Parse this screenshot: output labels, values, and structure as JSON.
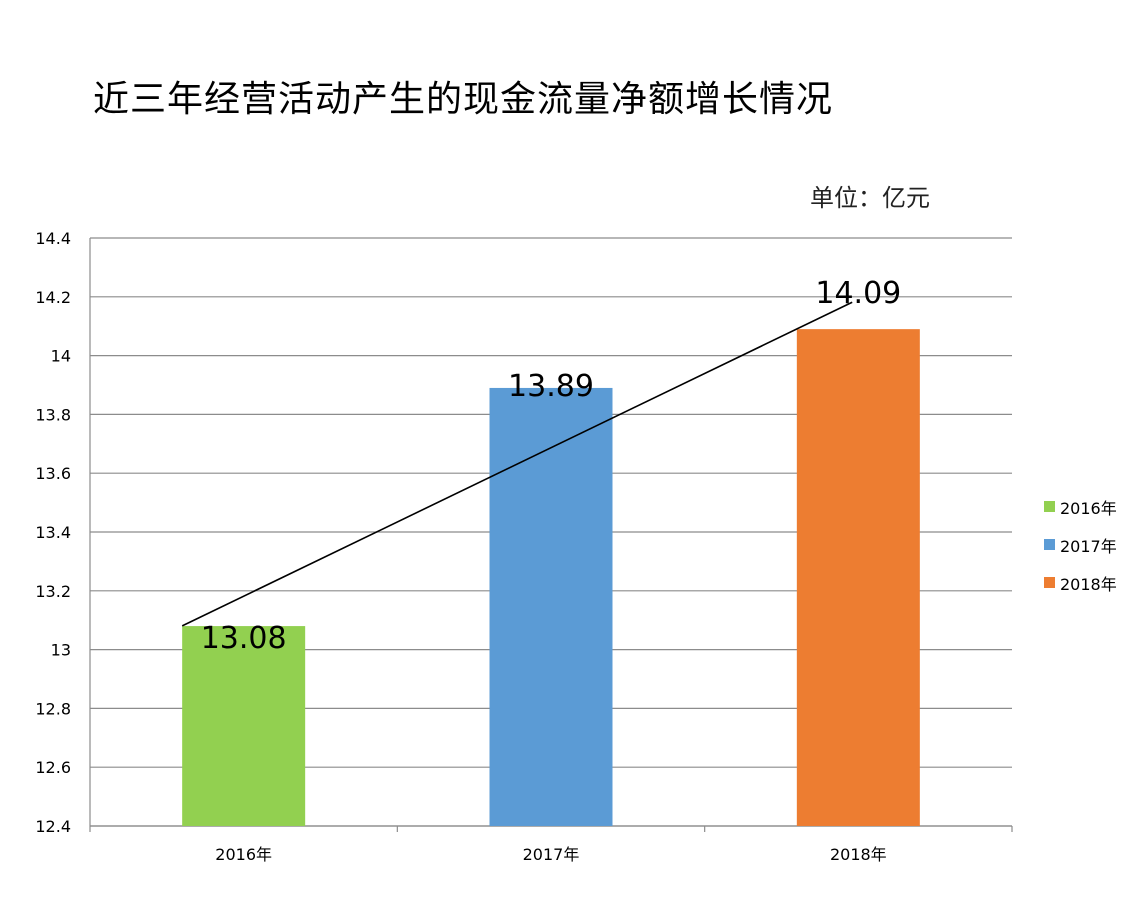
{
  "title": "近三年经营活动产生的现金流量净额增长情况",
  "unit_label": "单位：亿元",
  "chart_data": {
    "type": "bar",
    "title": "近三年经营活动产生的现金流量净额增长情况",
    "categories": [
      "2016年",
      "2017年",
      "2018年"
    ],
    "values": [
      13.08,
      13.89,
      14.09
    ],
    "data_labels": [
      "13.08",
      "13.89",
      "14.09"
    ],
    "colors": [
      "#92d050",
      "#5b9bd5",
      "#ed7d31"
    ],
    "ylim": [
      12.4,
      14.4
    ],
    "yticks": [
      12.4,
      12.6,
      12.8,
      13,
      13.2,
      13.4,
      13.6,
      13.8,
      14,
      14.2,
      14.4
    ],
    "ytick_labels": [
      "12.4",
      "12.6",
      "12.8",
      "13",
      "13.2",
      "13.4",
      "13.6",
      "13.8",
      "14",
      "14.2",
      "14.4"
    ],
    "xlabel": "",
    "ylabel": "",
    "grid": true,
    "legend": {
      "position": "right",
      "entries": [
        {
          "label": "2016年",
          "color": "#92d050"
        },
        {
          "label": "2017年",
          "color": "#5b9bd5"
        },
        {
          "label": "2018年",
          "color": "#ed7d31"
        }
      ]
    },
    "trendline": {
      "shown": true,
      "color": "#000000"
    }
  }
}
